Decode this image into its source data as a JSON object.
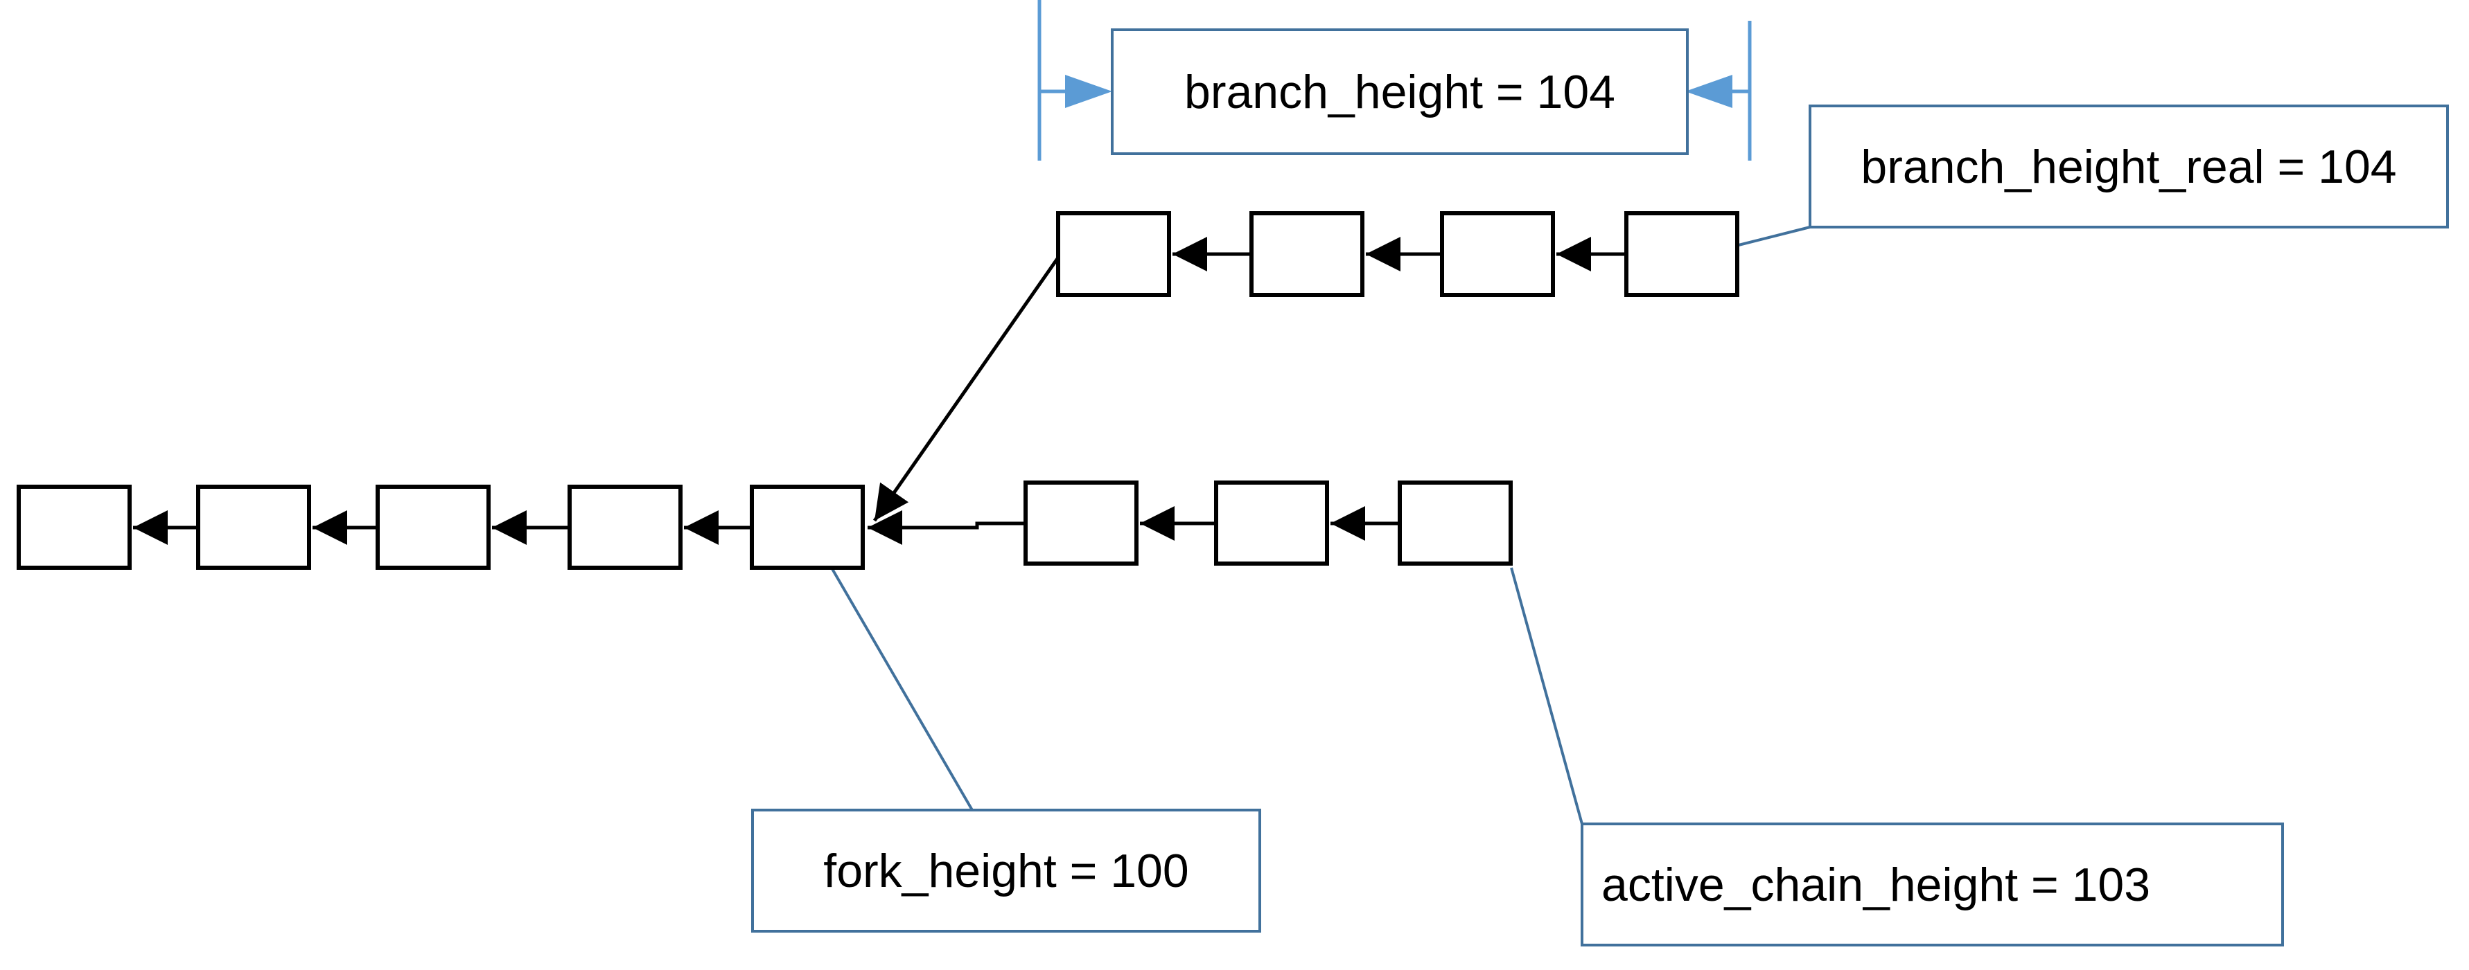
{
  "labels": {
    "branch_height": "branch_height = 104",
    "branch_height_real": "branch_height_real = 104",
    "fork_height": "fork_height = 100",
    "active_chain_height": "active_chain_height = 103"
  },
  "colors": {
    "callout_stroke": "#41719C",
    "dimension_arrow": "#5B9BD5",
    "block_stroke": "#000000",
    "background": "#FFFFFF"
  },
  "blocks": {
    "main_chain_count": 5,
    "active_branch_count": 3,
    "side_branch_count": 4
  }
}
